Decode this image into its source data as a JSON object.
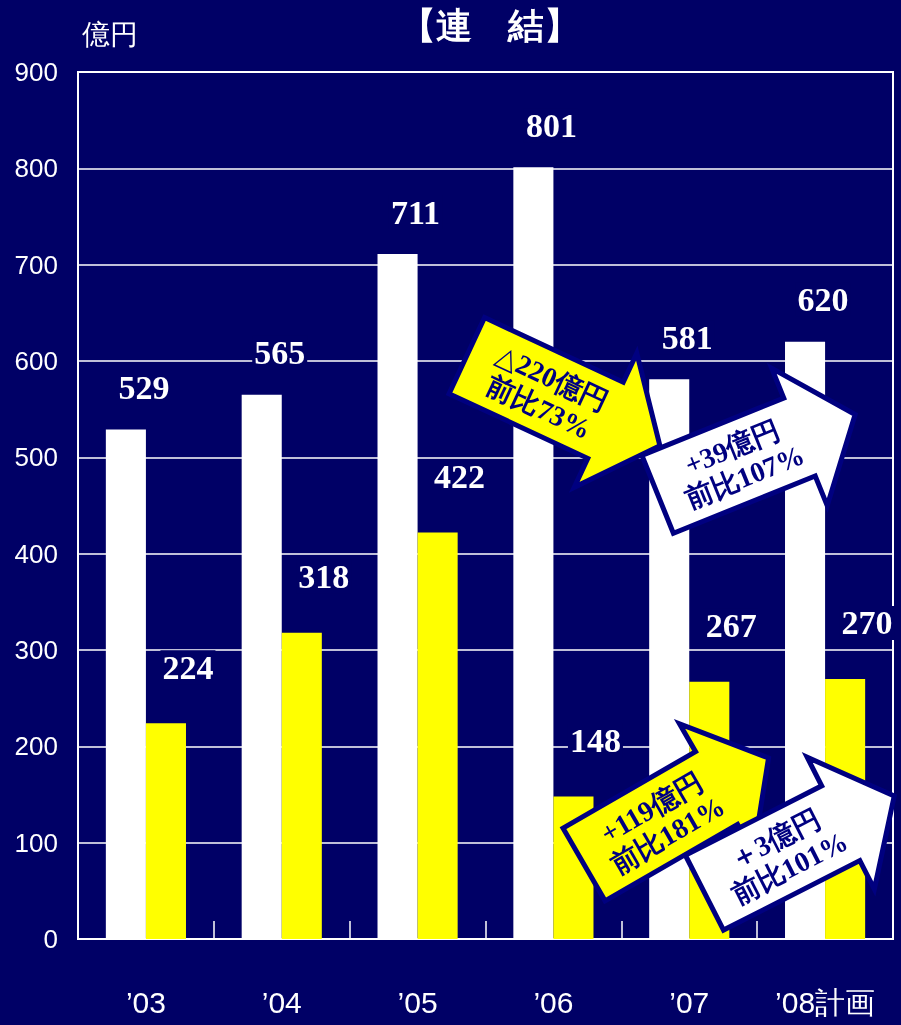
{
  "chart_data": {
    "type": "bar",
    "title": "【連　結】",
    "ylabel": "億円",
    "categories": [
      "’03",
      "’04",
      "’05",
      "’06",
      "’07",
      "’08計画"
    ],
    "series": [
      {
        "color": "#ffffff",
        "values": [
          529,
          565,
          711,
          801,
          581,
          620
        ]
      },
      {
        "color": "#ffff00",
        "values": [
          224,
          318,
          422,
          148,
          267,
          270
        ]
      }
    ],
    "ylim": [
      0,
      900
    ],
    "yticks": [
      0,
      100,
      200,
      300,
      400,
      500,
      600,
      700,
      800,
      900
    ],
    "grid": "y",
    "data_labels": true,
    "annotations": [
      "△220億円\n前比73%",
      "+39億円\n前比107%",
      "+119億円\n前比181%",
      "＋3億円\n前比101%"
    ]
  }
}
